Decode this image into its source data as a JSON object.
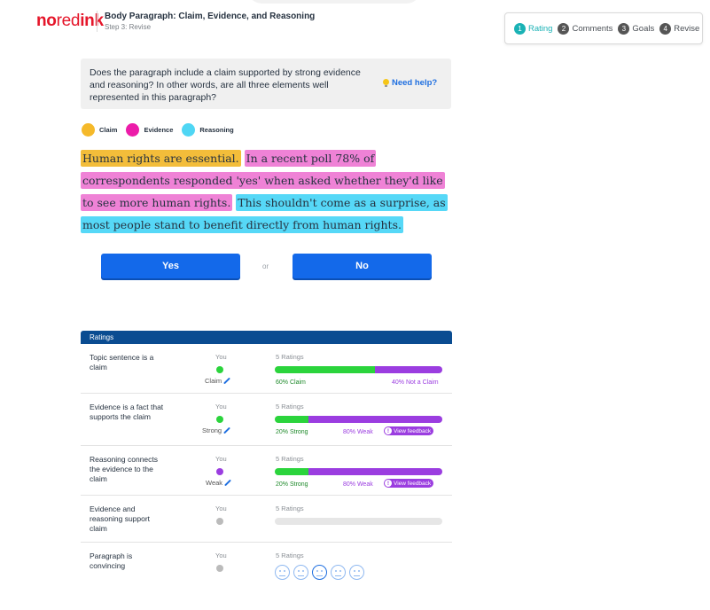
{
  "header": {
    "logo": {
      "no": "no",
      "red": "red",
      "ink": "ink"
    },
    "title": "Body Paragraph: Claim, Evidence, and Reasoning",
    "step": "Step 3: Revise"
  },
  "steps": [
    {
      "num": "1",
      "label": "Rating"
    },
    {
      "num": "2",
      "label": "Comments"
    },
    {
      "num": "3",
      "label": "Goals"
    },
    {
      "num": "4",
      "label": "Revise"
    }
  ],
  "question": {
    "text": "Does the paragraph include a claim supported by strong evidence and reasoning? In other words, are all three elements well represented in this paragraph?",
    "help": "Need help?"
  },
  "legend": [
    {
      "label": "Claim",
      "color": "#f5b92a"
    },
    {
      "label": "Evidence",
      "color": "#ec1ca9"
    },
    {
      "label": "Reasoning",
      "color": "#4fd6f4"
    }
  ],
  "paragraph": {
    "claim": "Human rights are essential.",
    "evidence": "In a recent poll 78% of correspondents responded 'yes' when asked whether they'd like to see more human rights.",
    "reasoning": "This shouldn't come as a surprise, as most people stand to benefit directly from human rights."
  },
  "buttons": {
    "yes": "Yes",
    "or": "or",
    "no": "No"
  },
  "ratings": {
    "header": "Ratings",
    "rows": [
      {
        "label": "Topic sentence is a claim",
        "you": "You",
        "you_value": "Claim",
        "you_color": "#2bd43c",
        "count": "5 Ratings",
        "pct_a": 60,
        "lbl_a": "60% Claim",
        "lbl_b": "40% Not a Claim"
      },
      {
        "label": "Evidence is a fact that supports the claim",
        "you": "You",
        "you_value": "Strong",
        "you_color": "#2bd43c",
        "count": "5 Ratings",
        "pct_a": 20,
        "lbl_a": "20% Strong",
        "lbl_b": "80% Weak",
        "feedback": "View feedback"
      },
      {
        "label": "Reasoning connects the evidence to the claim",
        "you": "You",
        "you_value": "Weak",
        "you_color": "#9b3de0",
        "count": "5 Ratings",
        "pct_a": 20,
        "lbl_a": "20% Strong",
        "lbl_b": "80% Weak",
        "feedback": "View feedback"
      },
      {
        "label": "Evidence and reasoning support claim",
        "you": "You",
        "you_color": "#bbbbbb",
        "count": "5 Ratings"
      },
      {
        "label": "Paragraph is convincing",
        "you": "You",
        "you_color": "#bbbbbb",
        "count": "5 Ratings"
      }
    ]
  }
}
